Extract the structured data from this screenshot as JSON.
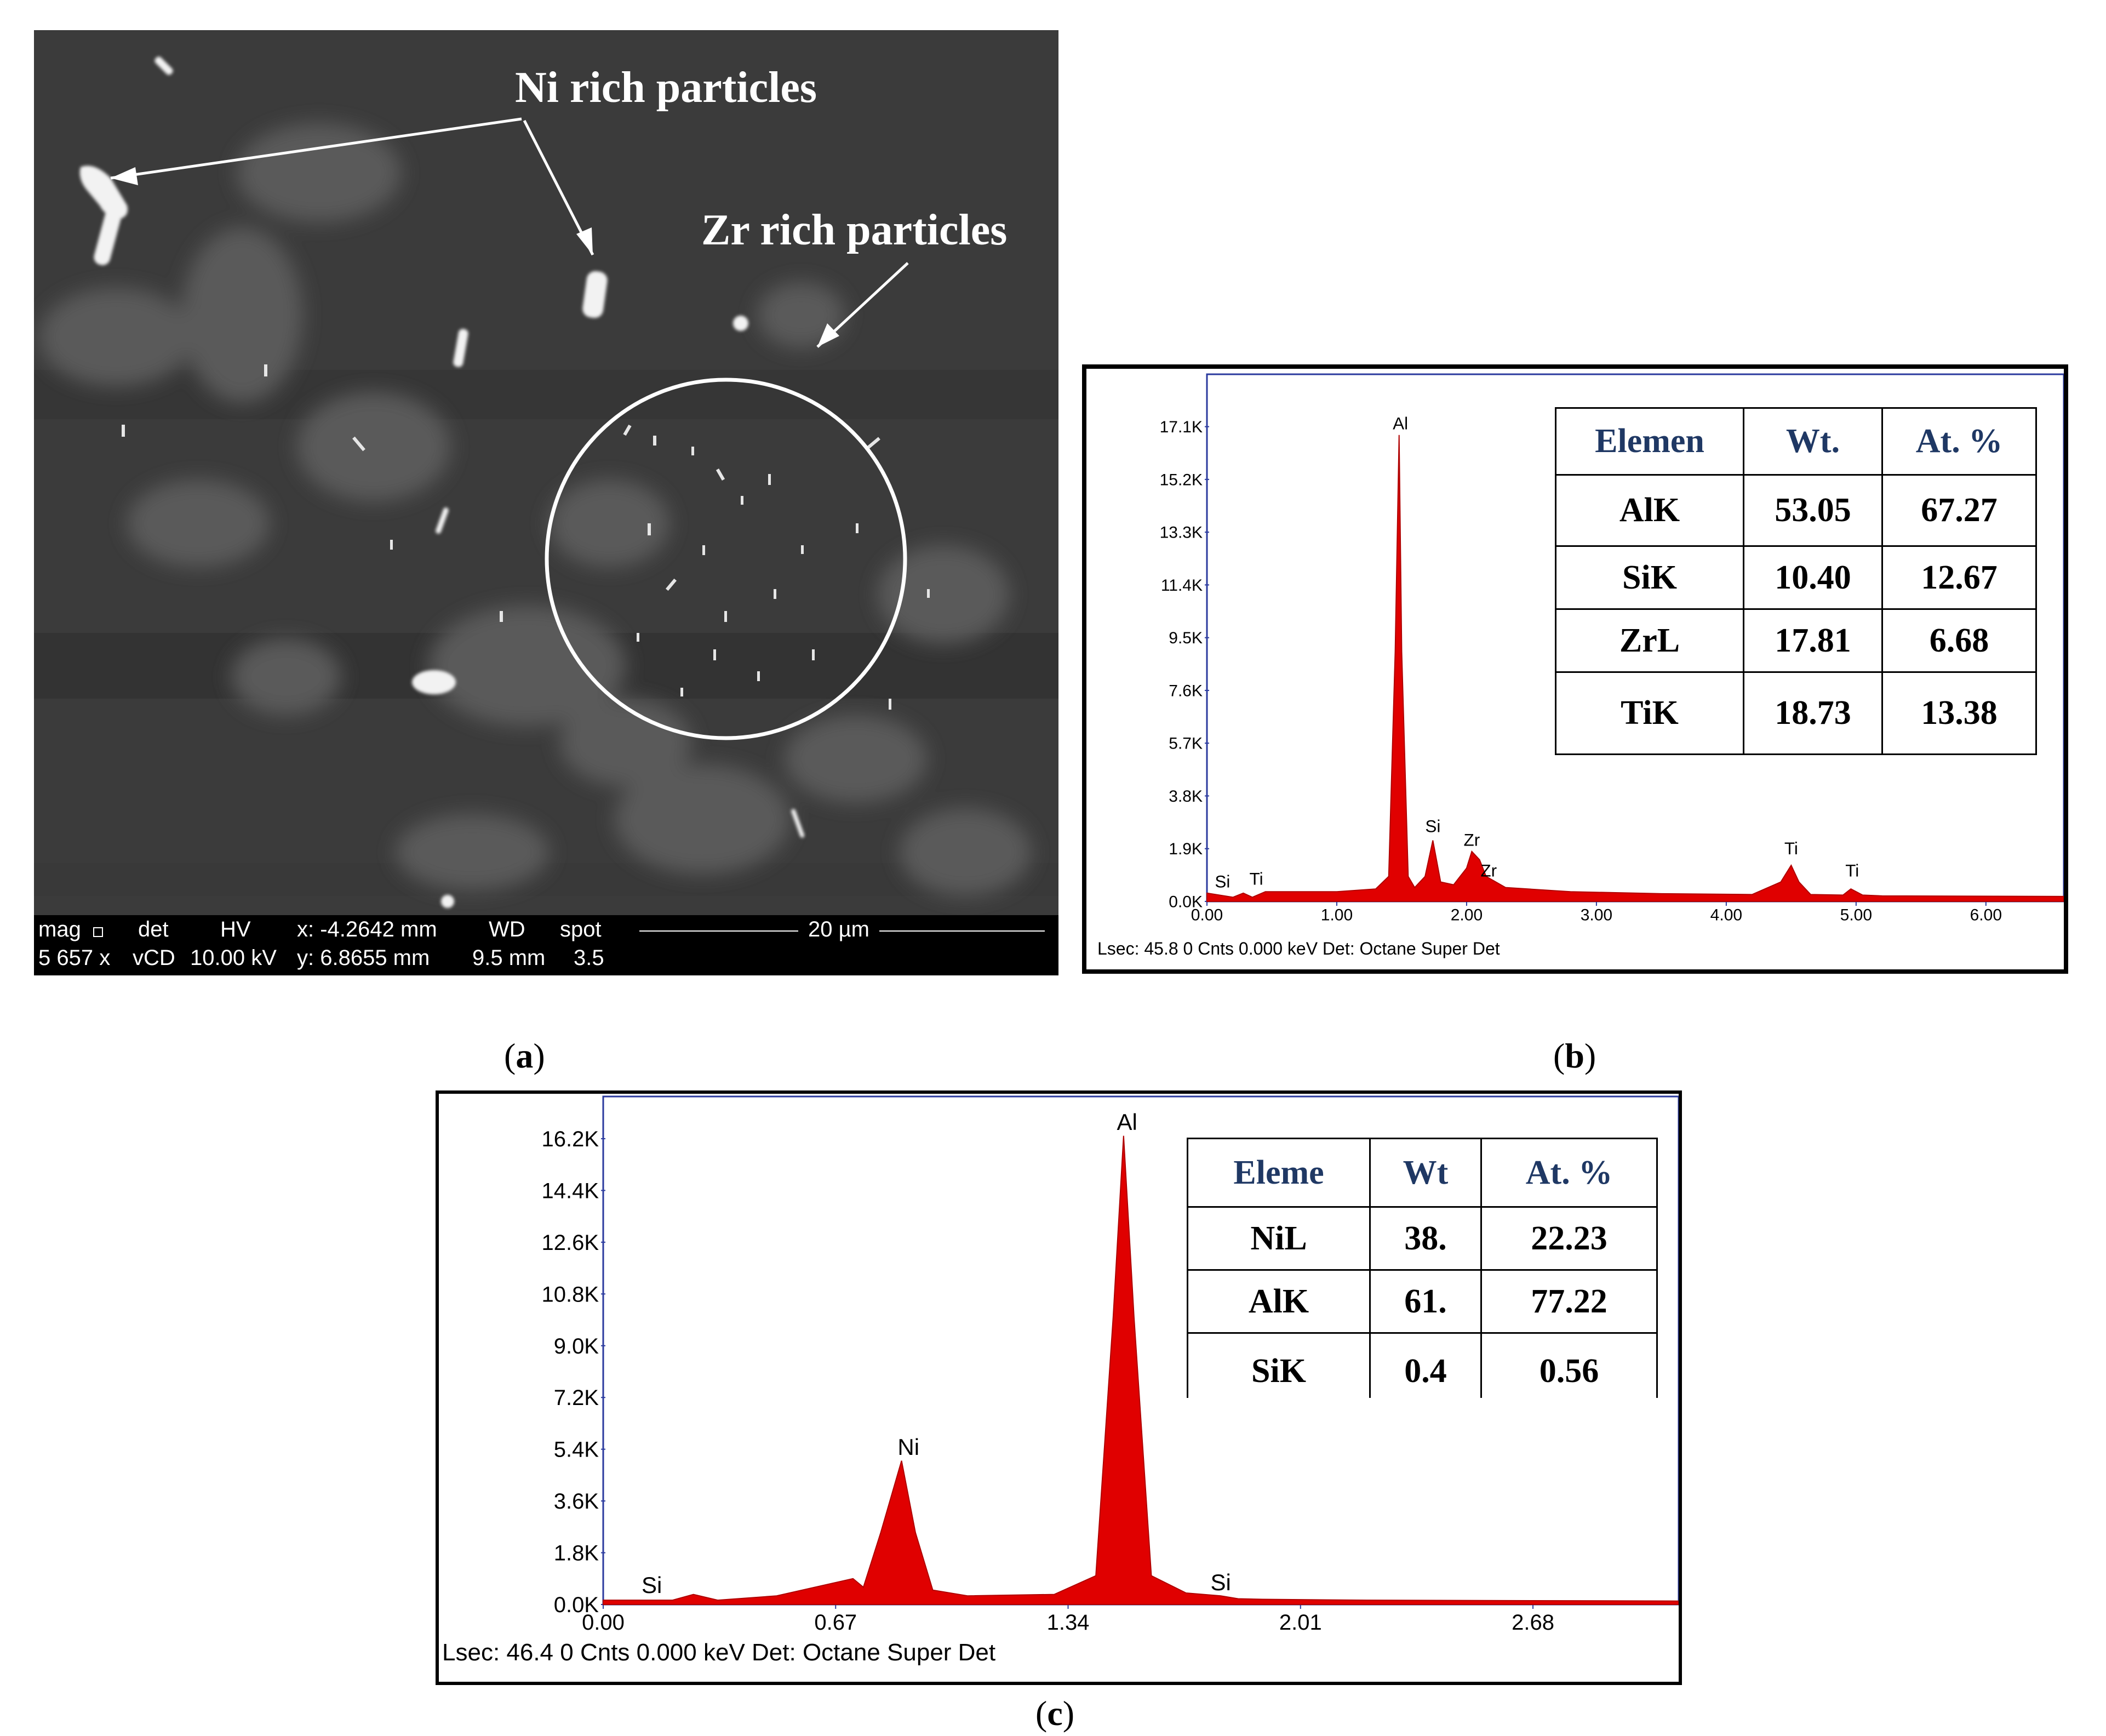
{
  "panel_a": {
    "caption_letter": "a",
    "annotations": {
      "ni": "Ni rich particles",
      "zr": "Zr rich particles"
    },
    "sem_info": {
      "headers": [
        "mag",
        "det",
        "HV",
        "x: -4.2642 mm",
        "WD",
        "spot"
      ],
      "values": [
        "5 657 x",
        "vCD",
        "10.00 kV",
        "y: 6.8655 mm",
        "9.5 mm",
        "3.5"
      ],
      "scale_bar": "20 µm"
    }
  },
  "panel_b": {
    "caption_letter": "b",
    "table": {
      "headers": [
        "Elemen",
        "Wt.",
        "At. %"
      ],
      "rows": [
        [
          "AlK",
          "53.05",
          "67.27"
        ],
        [
          "SiK",
          "10.40",
          "12.67"
        ],
        [
          "ZrL",
          "17.81",
          "6.68"
        ],
        [
          "TiK",
          "18.73",
          "13.38"
        ]
      ]
    },
    "footer": "Lsec: 45.8 0 Cnts  0.000 keV Det: Octane Super Det"
  },
  "panel_c": {
    "caption_letter": "c",
    "table": {
      "headers": [
        "Eleme",
        "Wt",
        "At. %"
      ],
      "rows": [
        [
          "NiL",
          "38.",
          "22.23"
        ],
        [
          "AlK",
          "61.",
          "77.22"
        ],
        [
          "SiK",
          "0.4",
          "0.56"
        ]
      ]
    },
    "footer": "Lsec: 46.4 0 Cnts  0.000 keV Det: Octane Super Det"
  },
  "chart_data": [
    {
      "type": "area",
      "panel": "b",
      "color": "#e00000",
      "y_ticks": [
        "0.0K",
        "1.9K",
        "3.8K",
        "5.7K",
        "7.6K",
        "9.5K",
        "11.4K",
        "13.3K",
        "15.2K",
        "17.1K"
      ],
      "x_ticks": [
        "0.00",
        "1.00",
        "2.00",
        "3.00",
        "4.00",
        "5.00",
        "6.00"
      ],
      "xlim": [
        0,
        6.6
      ],
      "ylim": [
        0,
        18000
      ],
      "x": [
        0,
        0.2,
        0.28,
        0.35,
        0.45,
        1.0,
        1.3,
        1.4,
        1.45,
        1.48,
        1.5,
        1.55,
        1.6,
        1.68,
        1.74,
        1.8,
        1.9,
        2.0,
        2.04,
        2.1,
        2.15,
        2.3,
        2.8,
        3.5,
        4.2,
        4.42,
        4.5,
        4.56,
        4.65,
        4.9,
        4.96,
        5.05,
        5.2,
        6.6
      ],
      "y": [
        300,
        150,
        300,
        150,
        350,
        350,
        450,
        900,
        9000,
        16800,
        9000,
        900,
        500,
        900,
        2200,
        700,
        600,
        1200,
        1800,
        1500,
        900,
        500,
        350,
        280,
        250,
        700,
        1300,
        700,
        250,
        230,
        450,
        230,
        200,
        180
      ],
      "peak_labels": [
        {
          "label": "Al",
          "x": 1.49,
          "y": 17000
        },
        {
          "label": "Si",
          "x": 1.74,
          "y": 2500
        },
        {
          "label": "Zr",
          "x": 2.04,
          "y": 2000
        },
        {
          "label": "Zr",
          "x": 2.17,
          "y": 900
        },
        {
          "label": "Ti",
          "x": 4.5,
          "y": 1700
        },
        {
          "label": "Ti",
          "x": 4.97,
          "y": 900
        },
        {
          "label": "Si",
          "x": 0.12,
          "y": 500
        },
        {
          "label": "Ti",
          "x": 0.38,
          "y": 600
        }
      ]
    },
    {
      "type": "area",
      "panel": "c",
      "color": "#e00000",
      "y_ticks": [
        "0.0K",
        "1.8K",
        "3.6K",
        "5.4K",
        "7.2K",
        "9.0K",
        "10.8K",
        "12.6K",
        "14.4K",
        "16.2K"
      ],
      "x_ticks": [
        "0.00",
        "0.67",
        "1.34",
        "2.01",
        "2.68"
      ],
      "xlim": [
        0,
        3.1
      ],
      "ylim": [
        0,
        17000
      ],
      "x": [
        0,
        0.2,
        0.26,
        0.33,
        0.5,
        0.72,
        0.75,
        0.8,
        0.86,
        0.9,
        0.95,
        1.05,
        1.3,
        1.42,
        1.47,
        1.5,
        1.53,
        1.58,
        1.68,
        1.78,
        1.83,
        1.9,
        2.2,
        3.1
      ],
      "y": [
        150,
        150,
        350,
        150,
        300,
        900,
        600,
        2500,
        5000,
        2500,
        500,
        300,
        350,
        1000,
        10000,
        16300,
        10000,
        1000,
        400,
        300,
        200,
        180,
        150,
        120
      ],
      "peak_labels": [
        {
          "label": "Al",
          "x": 1.51,
          "y": 16500
        },
        {
          "label": "Ni",
          "x": 0.88,
          "y": 5200
        },
        {
          "label": "Si",
          "x": 0.14,
          "y": 400
        },
        {
          "label": "Si",
          "x": 1.78,
          "y": 500
        }
      ]
    }
  ]
}
